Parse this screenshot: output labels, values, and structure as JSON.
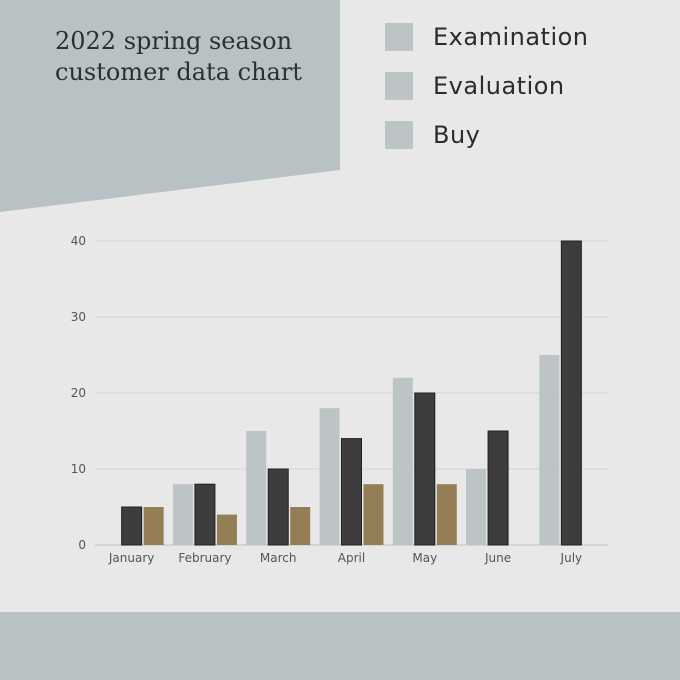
{
  "header": {
    "title": "2022 spring season customer data chart"
  },
  "legend": [
    {
      "label": "Examination",
      "color": "#bcc4c6"
    },
    {
      "label": "Evaluation",
      "color": "#bcc4c6"
    },
    {
      "label": "Buy",
      "color": "#bcc4c6"
    }
  ],
  "colors": {
    "panel": "#b8c1c3",
    "background": "#e8e8e8",
    "bar_light": "#bcc4c6",
    "bar_dark": "#3d3d3d",
    "bar_gold": "#937e55"
  },
  "chart_data": {
    "type": "bar",
    "categories": [
      "January",
      "February",
      "March",
      "April",
      "May",
      "June",
      "July"
    ],
    "series": [
      {
        "values": [
          0,
          8,
          15,
          18,
          22,
          10,
          25
        ],
        "color": "#bcc4c6"
      },
      {
        "values": [
          5,
          8,
          10,
          14,
          20,
          15,
          40
        ],
        "color": "#3d3d3d"
      },
      {
        "values": [
          5,
          4,
          5,
          8,
          8,
          0,
          0
        ],
        "color": "#937e55"
      }
    ],
    "y_ticks": [
      0,
      10,
      20,
      30,
      40
    ],
    "ylim": [
      0,
      40
    ],
    "grid": true,
    "legend_position": "top-right"
  }
}
